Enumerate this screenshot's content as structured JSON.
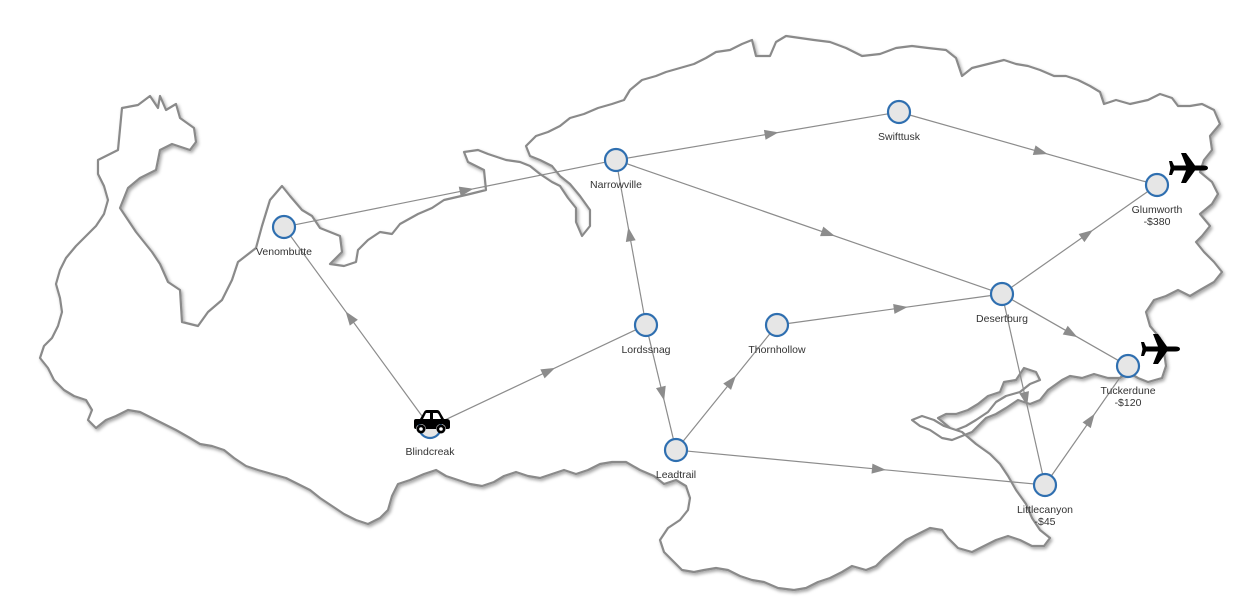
{
  "map": {
    "nodes": [
      {
        "id": "venombutte",
        "name": "Venombutte",
        "cost": ""
      },
      {
        "id": "narrowville",
        "name": "Narrowville",
        "cost": ""
      },
      {
        "id": "swifttusk",
        "name": "Swifttusk",
        "cost": ""
      },
      {
        "id": "glumworth",
        "name": "Glumworth",
        "cost": "-$380"
      },
      {
        "id": "lordssnag",
        "name": "Lordssnag",
        "cost": ""
      },
      {
        "id": "thornhollow",
        "name": "Thornhollow",
        "cost": ""
      },
      {
        "id": "desertburg",
        "name": "Desertburg",
        "cost": ""
      },
      {
        "id": "tuckerdune",
        "name": "Tuckerdune",
        "cost": "-$120"
      },
      {
        "id": "blindcreak",
        "name": "Blindcreak",
        "cost": ""
      },
      {
        "id": "leadtrail",
        "name": "Leadtrail",
        "cost": ""
      },
      {
        "id": "littlecanyon",
        "name": "Littlecanyon",
        "cost": "-$45"
      }
    ],
    "edges": [
      {
        "from": "blindcreak",
        "to": "venombutte"
      },
      {
        "from": "blindcreak",
        "to": "lordssnag"
      },
      {
        "from": "venombutte",
        "to": "narrowville"
      },
      {
        "from": "narrowville",
        "to": "swifttusk"
      },
      {
        "from": "narrowville",
        "to": "desertburg"
      },
      {
        "from": "swifttusk",
        "to": "glumworth"
      },
      {
        "from": "lordssnag",
        "to": "narrowville"
      },
      {
        "from": "lordssnag",
        "to": "leadtrail"
      },
      {
        "from": "leadtrail",
        "to": "thornhollow"
      },
      {
        "from": "thornhollow",
        "to": "desertburg"
      },
      {
        "from": "desertburg",
        "to": "glumworth"
      },
      {
        "from": "desertburg",
        "to": "tuckerdune"
      },
      {
        "from": "desertburg",
        "to": "littlecanyon"
      },
      {
        "from": "leadtrail",
        "to": "littlecanyon"
      },
      {
        "from": "littlecanyon",
        "to": "tuckerdune"
      }
    ],
    "vehicle": {
      "icon": "car-icon",
      "at": "blindcreak"
    },
    "airports": [
      {
        "icon": "airplane-icon",
        "at": "glumworth"
      },
      {
        "icon": "airplane-icon",
        "at": "tuckerdune"
      }
    ],
    "colors": {
      "node_stroke": "#2f6fb0",
      "node_fill": "#e6e6e6",
      "edge": "#8c8c8c",
      "coast": "#8a8a8a"
    }
  }
}
